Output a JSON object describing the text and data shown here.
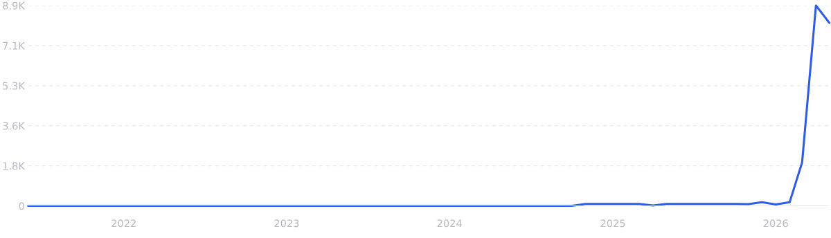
{
  "chart_data": {
    "type": "line",
    "x": [
      "2021-06",
      "2021-07",
      "2021-08",
      "2021-09",
      "2021-10",
      "2021-11",
      "2021-12",
      "2022-01",
      "2022-02",
      "2022-03",
      "2022-04",
      "2022-05",
      "2022-06",
      "2022-07",
      "2022-08",
      "2022-09",
      "2022-10",
      "2022-11",
      "2022-12",
      "2023-01",
      "2023-02",
      "2023-03",
      "2023-04",
      "2023-05",
      "2023-06",
      "2023-07",
      "2023-08",
      "2023-09",
      "2023-10",
      "2023-11",
      "2023-12",
      "2024-01",
      "2024-02",
      "2024-03",
      "2024-04",
      "2024-05",
      "2024-06",
      "2024-07",
      "2024-08",
      "2024-09",
      "2024-10",
      "2024-11",
      "2024-12",
      "2025-01",
      "2025-02",
      "2025-03",
      "2025-04",
      "2025-05",
      "2025-06",
      "2025-07",
      "2025-08",
      "2025-09",
      "2025-10",
      "2025-11",
      "2025-12",
      "2026-01",
      "2026-02",
      "2026-03",
      "2026-04",
      "2026-05"
    ],
    "series": [
      {
        "color": "#2e5ce6",
        "values": [
          0,
          0,
          0,
          0,
          0,
          0,
          0,
          0,
          0,
          0,
          0,
          0,
          0,
          0,
          0,
          0,
          0,
          0,
          0,
          0,
          0,
          0,
          0,
          0,
          0,
          0,
          0,
          0,
          0,
          0,
          0,
          0,
          0,
          0,
          0,
          0,
          0,
          0,
          0,
          0,
          0,
          85,
          85,
          85,
          85,
          85,
          20,
          85,
          85,
          85,
          85,
          85,
          85,
          80,
          160,
          60,
          160,
          1930,
          8900,
          8130
        ]
      }
    ],
    "xlim": [
      "2021-06",
      "2026-05"
    ],
    "xticks": [
      {
        "value": "2022-01",
        "label": "2022"
      },
      {
        "value": "2023-01",
        "label": "2023"
      },
      {
        "value": "2024-01",
        "label": "2024"
      },
      {
        "value": "2025-01",
        "label": "2025"
      },
      {
        "value": "2026-01",
        "label": "2026"
      }
    ],
    "ylim": [
      0,
      8900
    ],
    "yticks": [
      0,
      {
        "value": 1780,
        "label": "1.8K"
      },
      {
        "value": 3560,
        "label": "3.6K"
      },
      {
        "value": 5340,
        "label": "5.3K"
      },
      {
        "value": 7120,
        "label": "7.1K"
      },
      {
        "value": 8900,
        "label": "8.9K"
      }
    ],
    "grid": "y",
    "legend": false,
    "marker": "none",
    "line_style": "solid"
  }
}
